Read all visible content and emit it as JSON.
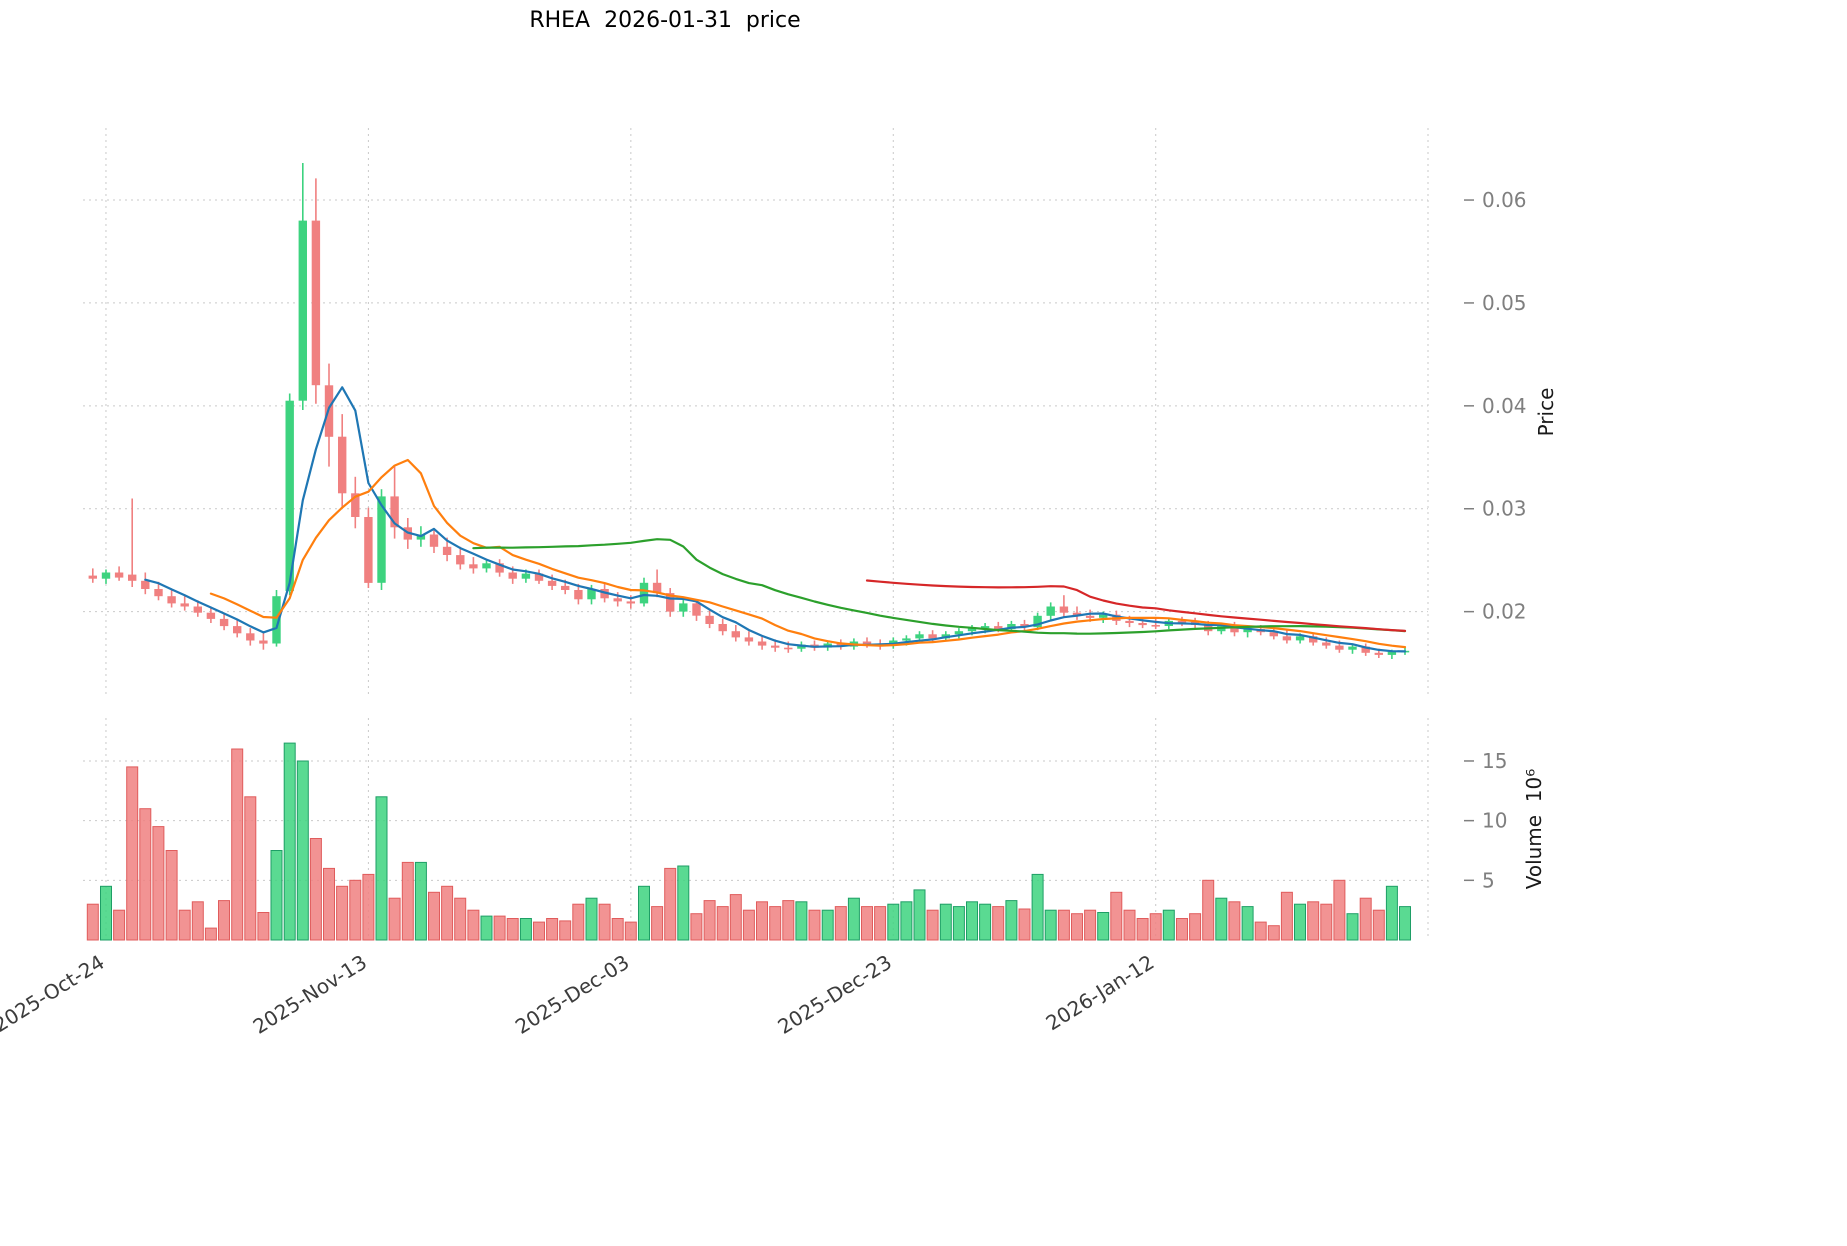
{
  "chart_data": {
    "type": "candlestick",
    "title": "RHEA  2026-01-31  price",
    "frequency": "daily",
    "start_date": "2025-10-23",
    "end_date": "2026-01-31",
    "grid": true,
    "colors": {
      "up": "#3dd37f",
      "down": "#f08080",
      "up_edge": "#1e9e66",
      "down_edge": "#e05c5c",
      "grid": "#c9c9c9",
      "tick_text": "#7f7f7f",
      "x_tick_text": "#3c3c3c"
    },
    "price_axis": {
      "label": "Price",
      "side": "right",
      "ticks": [
        0.02,
        0.03,
        0.04,
        0.05,
        0.06
      ],
      "tick_labels": [
        "0.02",
        "0.03",
        "0.04",
        "0.05",
        "0.06"
      ],
      "range": [
        0.0119,
        0.067
      ]
    },
    "volume_axis": {
      "label": "Volume  10⁶",
      "side": "right",
      "ticks_millions": [
        5,
        10,
        15
      ],
      "tick_labels": [
        "5",
        "10",
        "15"
      ],
      "range_millions": [
        0,
        18.6
      ]
    },
    "x_ticks": [
      {
        "index": 1,
        "label": "2025-Oct-24"
      },
      {
        "index": 21,
        "label": "2025-Nov-13"
      },
      {
        "index": 41,
        "label": "2025-Dec-03"
      },
      {
        "index": 61,
        "label": "2025-Dec-23"
      },
      {
        "index": 81,
        "label": "2026-Jan-12"
      }
    ],
    "moving_averages": [
      {
        "window": 5,
        "color": "#1f77b4"
      },
      {
        "window": 10,
        "color": "#ff7f0e"
      },
      {
        "window": 30,
        "color": "#2ca02c"
      },
      {
        "window": 60,
        "color": "#d62728"
      }
    ],
    "ohlc": [
      [
        0.0235,
        0.0242,
        0.0228,
        0.0232
      ],
      [
        0.0232,
        0.0241,
        0.0227,
        0.0238
      ],
      [
        0.0238,
        0.0244,
        0.023,
        0.0233
      ],
      [
        0.0236,
        0.031,
        0.0224,
        0.023
      ],
      [
        0.023,
        0.0238,
        0.0217,
        0.0222
      ],
      [
        0.0222,
        0.0229,
        0.0211,
        0.0215
      ],
      [
        0.0215,
        0.0221,
        0.0204,
        0.0208
      ],
      [
        0.0208,
        0.0215,
        0.0201,
        0.0205
      ],
      [
        0.0205,
        0.0211,
        0.0195,
        0.0199
      ],
      [
        0.0199,
        0.0205,
        0.0189,
        0.0193
      ],
      [
        0.0193,
        0.0198,
        0.0182,
        0.0186
      ],
      [
        0.0186,
        0.0193,
        0.0175,
        0.0179
      ],
      [
        0.0179,
        0.0184,
        0.0167,
        0.0172
      ],
      [
        0.0172,
        0.0179,
        0.0163,
        0.0169
      ],
      [
        0.0169,
        0.0221,
        0.0166,
        0.0215
      ],
      [
        0.022,
        0.0412,
        0.0216,
        0.0405
      ],
      [
        0.0405,
        0.0636,
        0.0396,
        0.058
      ],
      [
        0.058,
        0.0621,
        0.0402,
        0.042
      ],
      [
        0.042,
        0.0441,
        0.0341,
        0.037
      ],
      [
        0.037,
        0.0392,
        0.0301,
        0.0315
      ],
      [
        0.0315,
        0.0331,
        0.0281,
        0.0292
      ],
      [
        0.0292,
        0.0301,
        0.0223,
        0.0228
      ],
      [
        0.0228,
        0.0319,
        0.0221,
        0.0312
      ],
      [
        0.0312,
        0.0341,
        0.0271,
        0.0282
      ],
      [
        0.0282,
        0.0291,
        0.0261,
        0.027
      ],
      [
        0.027,
        0.0283,
        0.0263,
        0.0275
      ],
      [
        0.0275,
        0.0281,
        0.0257,
        0.0263
      ],
      [
        0.0263,
        0.0272,
        0.0249,
        0.0255
      ],
      [
        0.0255,
        0.0263,
        0.0241,
        0.0246
      ],
      [
        0.0246,
        0.0253,
        0.0237,
        0.0242
      ],
      [
        0.0242,
        0.0251,
        0.0238,
        0.0247
      ],
      [
        0.0247,
        0.0251,
        0.0234,
        0.0238
      ],
      [
        0.0238,
        0.0244,
        0.0227,
        0.0232
      ],
      [
        0.0232,
        0.0241,
        0.0228,
        0.0237
      ],
      [
        0.0237,
        0.0241,
        0.0227,
        0.023
      ],
      [
        0.023,
        0.0236,
        0.0221,
        0.0225
      ],
      [
        0.0225,
        0.0231,
        0.0217,
        0.0221
      ],
      [
        0.0221,
        0.0227,
        0.0207,
        0.0212
      ],
      [
        0.0212,
        0.0226,
        0.0207,
        0.0222
      ],
      [
        0.0222,
        0.0227,
        0.0209,
        0.0213
      ],
      [
        0.0213,
        0.0219,
        0.0205,
        0.021
      ],
      [
        0.021,
        0.0216,
        0.0203,
        0.0208
      ],
      [
        0.0208,
        0.0233,
        0.0205,
        0.0228
      ],
      [
        0.0228,
        0.0241,
        0.0214,
        0.0218
      ],
      [
        0.0218,
        0.0223,
        0.0195,
        0.02
      ],
      [
        0.02,
        0.0213,
        0.0195,
        0.0208
      ],
      [
        0.0208,
        0.0211,
        0.0191,
        0.0196
      ],
      [
        0.0196,
        0.0201,
        0.0184,
        0.0188
      ],
      [
        0.0188,
        0.0193,
        0.0177,
        0.0181
      ],
      [
        0.0181,
        0.0187,
        0.0171,
        0.0175
      ],
      [
        0.0175,
        0.0181,
        0.0167,
        0.0171
      ],
      [
        0.0171,
        0.0176,
        0.0163,
        0.0167
      ],
      [
        0.0167,
        0.0173,
        0.0161,
        0.0165
      ],
      [
        0.0165,
        0.0171,
        0.016,
        0.0164
      ],
      [
        0.0164,
        0.0171,
        0.0161,
        0.0168
      ],
      [
        0.0168,
        0.0172,
        0.0162,
        0.0165
      ],
      [
        0.0165,
        0.0172,
        0.0162,
        0.0169
      ],
      [
        0.0169,
        0.0173,
        0.0163,
        0.0166
      ],
      [
        0.0166,
        0.0174,
        0.0163,
        0.0171
      ],
      [
        0.0171,
        0.0175,
        0.0165,
        0.0168
      ],
      [
        0.0168,
        0.0173,
        0.0163,
        0.0167
      ],
      [
        0.0167,
        0.0175,
        0.0164,
        0.0172
      ],
      [
        0.0172,
        0.0177,
        0.0167,
        0.0174
      ],
      [
        0.0174,
        0.0181,
        0.017,
        0.0178
      ],
      [
        0.0178,
        0.0182,
        0.0171,
        0.0174
      ],
      [
        0.0174,
        0.0181,
        0.0171,
        0.0178
      ],
      [
        0.0178,
        0.0184,
        0.0174,
        0.0181
      ],
      [
        0.0181,
        0.0187,
        0.0177,
        0.0184
      ],
      [
        0.0184,
        0.0189,
        0.0179,
        0.0186
      ],
      [
        0.0186,
        0.019,
        0.018,
        0.0183
      ],
      [
        0.0183,
        0.0191,
        0.018,
        0.0188
      ],
      [
        0.0188,
        0.0192,
        0.0182,
        0.0185
      ],
      [
        0.0185,
        0.0199,
        0.0182,
        0.0196
      ],
      [
        0.0196,
        0.0209,
        0.0192,
        0.0205
      ],
      [
        0.0205,
        0.0216,
        0.0195,
        0.0199
      ],
      [
        0.0199,
        0.0205,
        0.0192,
        0.0196
      ],
      [
        0.0196,
        0.0202,
        0.019,
        0.0194
      ],
      [
        0.0194,
        0.02,
        0.0189,
        0.0197
      ],
      [
        0.0197,
        0.0201,
        0.0187,
        0.0191
      ],
      [
        0.0191,
        0.0196,
        0.0185,
        0.0189
      ],
      [
        0.0189,
        0.0194,
        0.0184,
        0.0187
      ],
      [
        0.0187,
        0.0193,
        0.0183,
        0.0186
      ],
      [
        0.0186,
        0.0194,
        0.0183,
        0.0191
      ],
      [
        0.0191,
        0.0195,
        0.0186,
        0.019
      ],
      [
        0.019,
        0.0194,
        0.0184,
        0.0187
      ],
      [
        0.0187,
        0.0191,
        0.0177,
        0.0181
      ],
      [
        0.0181,
        0.0189,
        0.0178,
        0.0186
      ],
      [
        0.0186,
        0.019,
        0.0176,
        0.018
      ],
      [
        0.018,
        0.0186,
        0.0175,
        0.0183
      ],
      [
        0.0183,
        0.0187,
        0.0177,
        0.018
      ],
      [
        0.018,
        0.0184,
        0.0173,
        0.0176
      ],
      [
        0.0176,
        0.0182,
        0.0169,
        0.0172
      ],
      [
        0.0172,
        0.0179,
        0.0169,
        0.0176
      ],
      [
        0.0176,
        0.0179,
        0.0167,
        0.017
      ],
      [
        0.017,
        0.0175,
        0.0164,
        0.0167
      ],
      [
        0.0167,
        0.0172,
        0.016,
        0.0163
      ],
      [
        0.0163,
        0.0169,
        0.0159,
        0.0166
      ],
      [
        0.0166,
        0.0169,
        0.0157,
        0.016
      ],
      [
        0.016,
        0.0164,
        0.0155,
        0.0158
      ],
      [
        0.0158,
        0.0163,
        0.0154,
        0.0161
      ],
      [
        0.0161,
        0.0165,
        0.0158,
        0.0162
      ]
    ],
    "volume_millions": [
      3.0,
      4.5,
      2.5,
      14.5,
      11.0,
      9.5,
      7.5,
      2.5,
      3.2,
      1.0,
      3.3,
      16.0,
      12.0,
      2.3,
      7.5,
      16.5,
      15.0,
      8.5,
      6.0,
      4.5,
      5.0,
      5.5,
      12.0,
      3.5,
      6.5,
      6.5,
      4.0,
      4.5,
      3.5,
      2.5,
      2.0,
      2.0,
      1.8,
      1.8,
      1.5,
      1.8,
      1.6,
      3.0,
      3.5,
      3.0,
      1.8,
      1.5,
      4.5,
      2.8,
      6.0,
      6.2,
      2.2,
      3.3,
      2.8,
      3.8,
      2.5,
      3.2,
      2.8,
      3.3,
      3.2,
      2.5,
      2.5,
      2.8,
      3.5,
      2.8,
      2.8,
      3.0,
      3.2,
      4.2,
      2.5,
      3.0,
      2.8,
      3.2,
      3.0,
      2.8,
      3.3,
      2.6,
      5.5,
      2.5,
      2.5,
      2.2,
      2.5,
      2.3,
      4.0,
      2.5,
      1.8,
      2.2,
      2.5,
      1.8,
      2.2,
      5.0,
      3.5,
      3.2,
      2.8,
      1.5,
      1.2,
      4.0,
      3.0,
      3.2,
      3.0,
      5.0,
      2.2,
      3.5,
      2.5,
      4.5,
      2.8
    ]
  }
}
